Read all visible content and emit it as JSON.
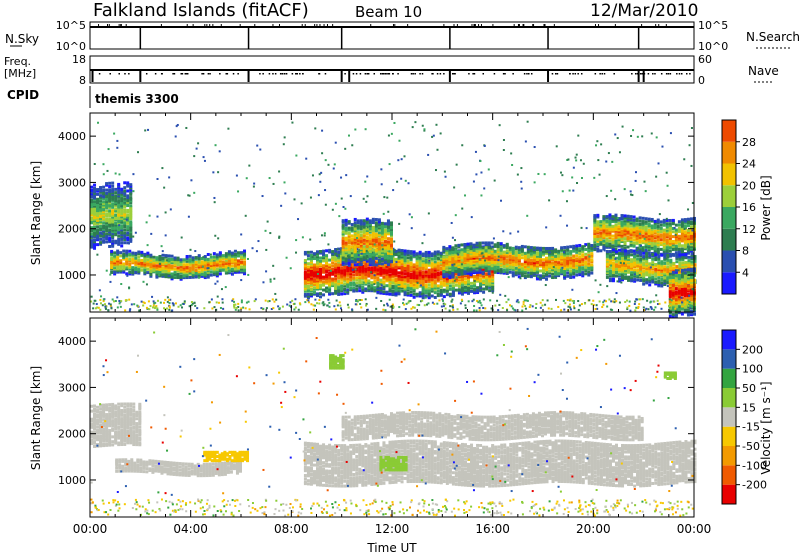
{
  "header": {
    "station": "Falkland Islands (fitACF)",
    "beam": "Beam 10",
    "date": "12/Mar/2010"
  },
  "strips": {
    "nsky_label": "N.Sky",
    "nsky_ticks": [
      "10^5",
      "10^0"
    ],
    "nsearch_label": "N.Search",
    "nsearch_ticks": [
      "10^5",
      "10^0"
    ],
    "freq_label": "Freq.",
    "freq_unit": "[MHz]",
    "freq_ticks": [
      "18",
      "8"
    ],
    "nave_label": "Nave",
    "nave_ticks": [
      "60",
      "0"
    ],
    "cpid_label": "CPID",
    "cpid_value": "themis 3300"
  },
  "colors": {
    "power_scale": [
      "#1a1aff",
      "#2a4fb0",
      "#2e7d50",
      "#3aa860",
      "#9ccf3a",
      "#f2c200",
      "#f08a00",
      "#ee4a00",
      "#e80000"
    ],
    "velocity_scale": [
      "#e80000",
      "#f05a00",
      "#f39a00",
      "#f7c800",
      "#c4c4bc",
      "#8acb35",
      "#33a440",
      "#2c5fb0",
      "#1a1aff"
    ],
    "ground_scatter": "#c4c4bc"
  },
  "chart_data": [
    {
      "type": "heatmap",
      "name": "power",
      "ylabel": "Slant Range [km]",
      "xlabel": "Time UT",
      "ylim": [
        200,
        4500
      ],
      "xlim_hours": [
        0,
        24
      ],
      "yticks": [
        "1000",
        "2000",
        "3000",
        "4000"
      ],
      "xticks": [
        "00:00",
        "04:00",
        "08:00",
        "12:00",
        "16:00",
        "20:00",
        "00:00"
      ],
      "colorbar_label": "Power [dB]",
      "colorbar_ticks": [
        "4",
        "8",
        "12",
        "16",
        "20",
        "24",
        "28"
      ],
      "colorbar_range": [
        0,
        30
      ],
      "echo_bands": [
        {
          "t_start": 0.0,
          "t_end": 1.6,
          "range_center": 2300,
          "range_width": 700,
          "peak_db": 16
        },
        {
          "t_start": 0.8,
          "t_end": 6.2,
          "range_center": 1250,
          "range_width": 250,
          "peak_db": 24
        },
        {
          "t_start": 8.5,
          "t_end": 16.0,
          "range_center": 1100,
          "range_width": 500,
          "peak_db": 30
        },
        {
          "t_start": 10.0,
          "t_end": 12.0,
          "range_center": 1700,
          "range_width": 500,
          "peak_db": 24
        },
        {
          "t_start": 14.0,
          "t_end": 20.0,
          "range_center": 1350,
          "range_width": 350,
          "peak_db": 24
        },
        {
          "t_start": 20.0,
          "t_end": 24.0,
          "range_center": 1900,
          "range_width": 400,
          "peak_db": 24
        },
        {
          "t_start": 20.5,
          "t_end": 24.0,
          "range_center": 1200,
          "range_width": 350,
          "peak_db": 22
        },
        {
          "t_start": 23.0,
          "t_end": 24.0,
          "range_center": 700,
          "range_width": 500,
          "peak_db": 30
        }
      ]
    },
    {
      "type": "heatmap",
      "name": "velocity",
      "ylabel": "Slant Range [km]",
      "xlabel": "Time UT",
      "ylim": [
        200,
        4500
      ],
      "xlim_hours": [
        0,
        24
      ],
      "yticks": [
        "1000",
        "2000",
        "3000",
        "4000"
      ],
      "xticks": [
        "00:00",
        "04:00",
        "08:00",
        "12:00",
        "16:00",
        "20:00",
        "00:00"
      ],
      "colorbar_label": "Velocity [m s⁻¹]",
      "colorbar_ticks": [
        "-200",
        "-100",
        "-50",
        "-15",
        "15",
        "50",
        "100",
        "200"
      ],
      "colorbar_range": [
        -250,
        250
      ],
      "ground_scatter_regions": [
        {
          "t_start": 0.0,
          "t_end": 2.0,
          "range_center": 2200,
          "range_width": 900
        },
        {
          "t_start": 1.0,
          "t_end": 6.0,
          "range_center": 1300,
          "range_width": 250
        },
        {
          "t_start": 8.5,
          "t_end": 24.0,
          "range_center": 1400,
          "range_width": 900
        },
        {
          "t_start": 10.0,
          "t_end": 22.0,
          "range_center": 2200,
          "range_width": 500
        }
      ],
      "velocity_features": [
        {
          "t_start": 4.5,
          "t_end": 6.2,
          "range_center": 1550,
          "range_width": 200,
          "velocity": -40
        },
        {
          "t_start": 11.5,
          "t_end": 12.5,
          "range_center": 1400,
          "range_width": 300,
          "velocity": 40
        },
        {
          "t_start": 9.5,
          "t_end": 10.0,
          "range_center": 3600,
          "range_width": 300,
          "velocity": 40
        },
        {
          "t_start": 22.8,
          "t_end": 23.3,
          "range_center": 3300,
          "range_width": 150,
          "velocity": 40
        }
      ]
    }
  ]
}
